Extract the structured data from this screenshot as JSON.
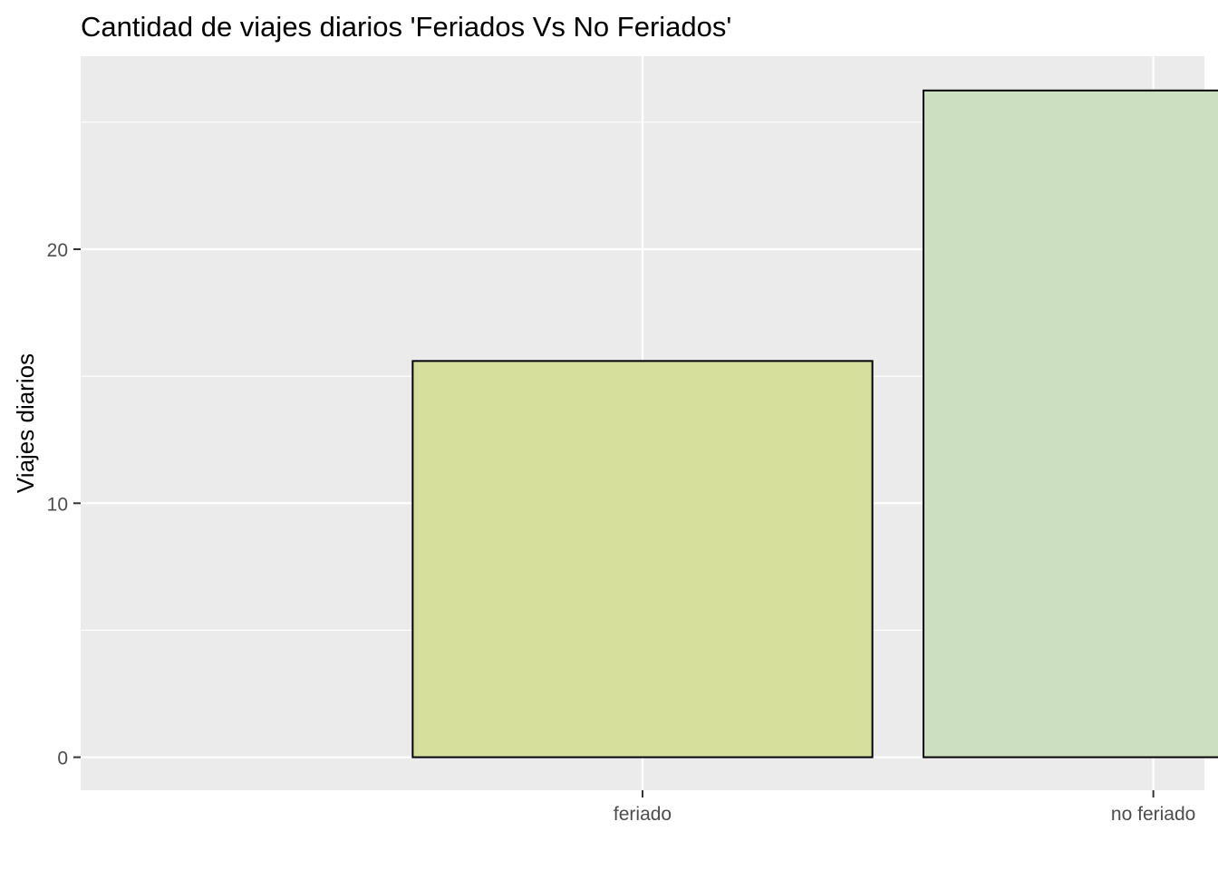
{
  "chart_data": {
    "type": "bar",
    "title": "Cantidad de viajes diarios 'Feriados Vs No Feriados'",
    "xlabel": "",
    "ylabel": "Viajes diarios",
    "categories": [
      "feriado",
      "no feriado"
    ],
    "values": [
      15.6,
      26.25
    ],
    "bar_colors": [
      "#d6e09c",
      "#ccdfc0"
    ],
    "bar_outline_color": "#000000",
    "ylim": [
      -1.3,
      27.6
    ],
    "yticks": [
      0,
      10,
      20
    ],
    "ytick_labels": [
      "0",
      "10",
      "20"
    ],
    "grid": true,
    "legend": "none",
    "panel_background": "#ebebeb",
    "grid_color": "#ffffff"
  }
}
